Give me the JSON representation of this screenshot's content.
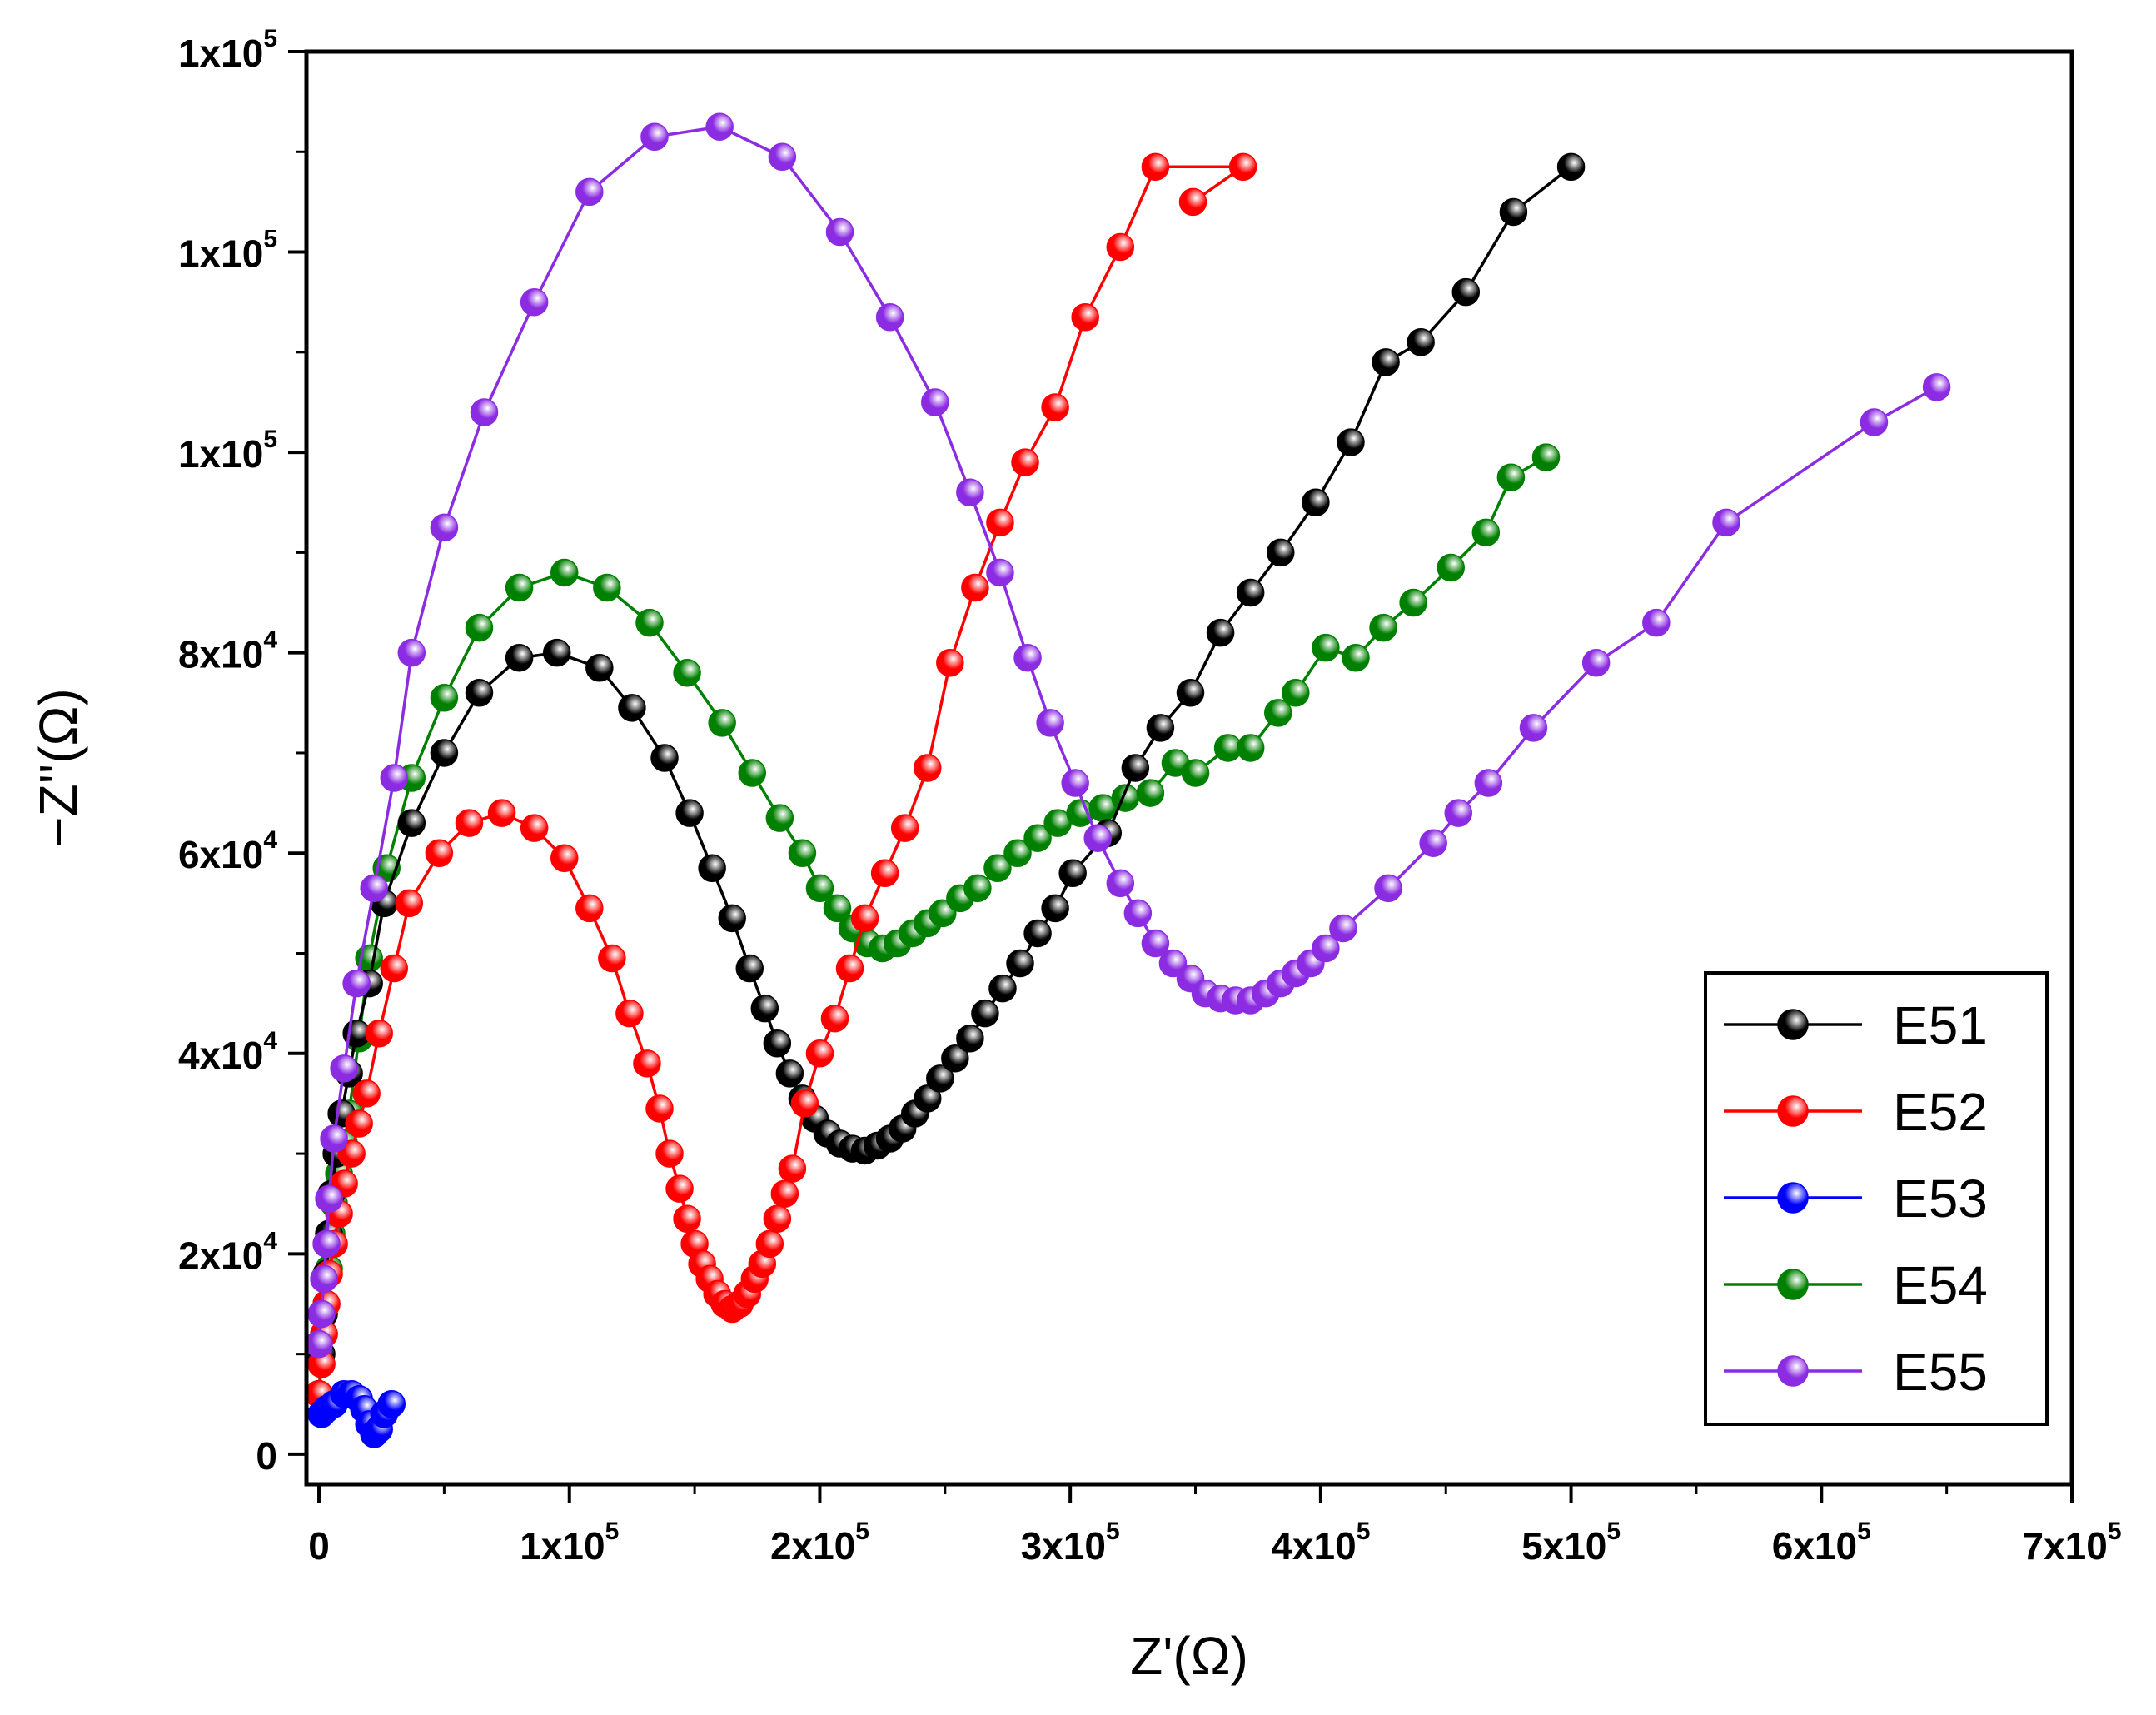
{
  "chart_data": {
    "type": "scatter",
    "title": "",
    "xlabel": "Z'(Ω)",
    "ylabel": "−Z''(Ω)",
    "xlim": [
      -5000,
      700000
    ],
    "ylim": [
      -3000,
      140000
    ],
    "x_ticks": [
      {
        "value": 0,
        "mantissa": "0",
        "exp": ""
      },
      {
        "value": 100000,
        "mantissa": "1x10",
        "exp": "5"
      },
      {
        "value": 200000,
        "mantissa": "2x10",
        "exp": "5"
      },
      {
        "value": 300000,
        "mantissa": "3x10",
        "exp": "5"
      },
      {
        "value": 400000,
        "mantissa": "4x10",
        "exp": "5"
      },
      {
        "value": 500000,
        "mantissa": "5x10",
        "exp": "5"
      },
      {
        "value": 600000,
        "mantissa": "6x10",
        "exp": "5"
      },
      {
        "value": 700000,
        "mantissa": "7x10",
        "exp": "5"
      }
    ],
    "y_ticks": [
      {
        "value": 0,
        "mantissa": "0",
        "exp": ""
      },
      {
        "value": 20000,
        "mantissa": "2x10",
        "exp": "4"
      },
      {
        "value": 40000,
        "mantissa": "4x10",
        "exp": "4"
      },
      {
        "value": 60000,
        "mantissa": "6x10",
        "exp": "4"
      },
      {
        "value": 80000,
        "mantissa": "8x10",
        "exp": "4"
      },
      {
        "value": 100000,
        "mantissa": "1x10",
        "exp": "5"
      },
      {
        "value": 120000,
        "mantissa": "1x10",
        "exp": "5"
      },
      {
        "value": 140000,
        "mantissa": "1x10",
        "exp": "5"
      }
    ],
    "legend_position": "bottom-right",
    "series": [
      {
        "name": "E51",
        "color": "#000000",
        "points": [
          [
            0,
            6000
          ],
          [
            1000,
            10000
          ],
          [
            2000,
            14000
          ],
          [
            3000,
            18000
          ],
          [
            4000,
            22000
          ],
          [
            5000,
            26000
          ],
          [
            7000,
            30000
          ],
          [
            9000,
            34000
          ],
          [
            12000,
            38000
          ],
          [
            15000,
            42000
          ],
          [
            20000,
            47000
          ],
          [
            26000,
            55000
          ],
          [
            37000,
            63000
          ],
          [
            50000,
            70000
          ],
          [
            64000,
            76000
          ],
          [
            80000,
            79500
          ],
          [
            95000,
            80000
          ],
          [
            112000,
            78500
          ],
          [
            125000,
            74500
          ],
          [
            138000,
            69500
          ],
          [
            148000,
            64000
          ],
          [
            157000,
            58500
          ],
          [
            165000,
            53500
          ],
          [
            172000,
            48500
          ],
          [
            178000,
            44500
          ],
          [
            183000,
            41000
          ],
          [
            188000,
            38000
          ],
          [
            193000,
            35500
          ],
          [
            198000,
            33500
          ],
          [
            203000,
            32000
          ],
          [
            208000,
            31000
          ],
          [
            213000,
            30500
          ],
          [
            218000,
            30300
          ],
          [
            223000,
            30800
          ],
          [
            228000,
            31500
          ],
          [
            233000,
            32500
          ],
          [
            238000,
            34000
          ],
          [
            243000,
            35500
          ],
          [
            248000,
            37500
          ],
          [
            254000,
            39500
          ],
          [
            260000,
            41500
          ],
          [
            266000,
            44000
          ],
          [
            273000,
            46500
          ],
          [
            280000,
            49000
          ],
          [
            287000,
            52000
          ],
          [
            294000,
            54500
          ],
          [
            301000,
            58000
          ],
          [
            315000,
            62000
          ],
          [
            326000,
            68500
          ],
          [
            336000,
            72500
          ],
          [
            348000,
            76000
          ],
          [
            360000,
            82000
          ],
          [
            372000,
            86000
          ],
          [
            384000,
            90000
          ],
          [
            398000,
            95000
          ],
          [
            412000,
            101000
          ],
          [
            426000,
            109000
          ],
          [
            440000,
            111000
          ],
          [
            458000,
            116000
          ],
          [
            477000,
            124000
          ],
          [
            500000,
            128500
          ]
        ]
      },
      {
        "name": "E52",
        "color": "#ff0000",
        "points": [
          [
            0,
            6000
          ],
          [
            1000,
            9000
          ],
          [
            2000,
            12000
          ],
          [
            3000,
            15000
          ],
          [
            4000,
            18000
          ],
          [
            6000,
            21000
          ],
          [
            8000,
            24000
          ],
          [
            10000,
            27000
          ],
          [
            13000,
            30000
          ],
          [
            16000,
            33000
          ],
          [
            19000,
            36000
          ],
          [
            24000,
            42000
          ],
          [
            30000,
            48500
          ],
          [
            36000,
            55000
          ],
          [
            48000,
            60000
          ],
          [
            60000,
            63000
          ],
          [
            73000,
            64000
          ],
          [
            86000,
            62500
          ],
          [
            98000,
            59500
          ],
          [
            108000,
            54500
          ],
          [
            117000,
            49500
          ],
          [
            124000,
            44000
          ],
          [
            131000,
            39000
          ],
          [
            136000,
            34500
          ],
          [
            140000,
            30000
          ],
          [
            144000,
            26500
          ],
          [
            147000,
            23500
          ],
          [
            150000,
            21000
          ],
          [
            153000,
            19000
          ],
          [
            156000,
            17500
          ],
          [
            159000,
            16000
          ],
          [
            162000,
            15000
          ],
          [
            165000,
            14500
          ],
          [
            168000,
            15000
          ],
          [
            171000,
            16000
          ],
          [
            174000,
            17500
          ],
          [
            177000,
            19000
          ],
          [
            180000,
            21000
          ],
          [
            183000,
            23500
          ],
          [
            186000,
            26000
          ],
          [
            189000,
            28500
          ],
          [
            194000,
            35000
          ],
          [
            200000,
            40000
          ],
          [
            206000,
            43500
          ],
          [
            212000,
            48500
          ],
          [
            218000,
            53500
          ],
          [
            226000,
            58000
          ],
          [
            234000,
            62500
          ],
          [
            243000,
            68500
          ],
          [
            252000,
            79000
          ],
          [
            262000,
            86500
          ],
          [
            272000,
            93000
          ],
          [
            282000,
            99000
          ],
          [
            294000,
            104500
          ],
          [
            306000,
            113500
          ],
          [
            320000,
            120500
          ],
          [
            334000,
            128500
          ],
          [
            369000,
            128500
          ],
          [
            349000,
            125000
          ]
        ]
      },
      {
        "name": "E53",
        "color": "#0000ff",
        "points": [
          [
            1000,
            4000
          ],
          [
            3000,
            4500
          ],
          [
            6000,
            5000
          ],
          [
            10000,
            6000
          ],
          [
            13000,
            6000
          ],
          [
            16000,
            5500
          ],
          [
            18000,
            4500
          ],
          [
            20000,
            3000
          ],
          [
            22000,
            2000
          ],
          [
            24000,
            2500
          ],
          [
            26000,
            4000
          ],
          [
            29000,
            5000
          ]
        ]
      },
      {
        "name": "E54",
        "color": "#008000",
        "points": [
          [
            0,
            6000
          ],
          [
            1000,
            9000
          ],
          [
            2000,
            12000
          ],
          [
            3000,
            15000
          ],
          [
            4000,
            18500
          ],
          [
            5000,
            22000
          ],
          [
            6000,
            25000
          ],
          [
            8000,
            28000
          ],
          [
            10000,
            31000
          ],
          [
            12000,
            34000
          ],
          [
            16000,
            41500
          ],
          [
            20000,
            49500
          ],
          [
            27000,
            58500
          ],
          [
            37000,
            67500
          ],
          [
            50000,
            75500
          ],
          [
            64000,
            82500
          ],
          [
            80000,
            86500
          ],
          [
            98000,
            88000
          ],
          [
            115000,
            86500
          ],
          [
            132000,
            83000
          ],
          [
            147000,
            78000
          ],
          [
            161000,
            73000
          ],
          [
            173000,
            68000
          ],
          [
            184000,
            63500
          ],
          [
            193000,
            60000
          ],
          [
            200000,
            56500
          ],
          [
            207000,
            54500
          ],
          [
            213000,
            52500
          ],
          [
            219000,
            51000
          ],
          [
            225000,
            50500
          ],
          [
            231000,
            51000
          ],
          [
            237000,
            52000
          ],
          [
            243000,
            53000
          ],
          [
            249000,
            54000
          ],
          [
            256000,
            55500
          ],
          [
            263000,
            56500
          ],
          [
            271000,
            58500
          ],
          [
            279000,
            60000
          ],
          [
            287000,
            61500
          ],
          [
            295000,
            63000
          ],
          [
            304000,
            64000
          ],
          [
            313000,
            64500
          ],
          [
            322000,
            65500
          ],
          [
            332000,
            66000
          ],
          [
            342000,
            69000
          ],
          [
            350000,
            68000
          ],
          [
            363000,
            70500
          ],
          [
            372000,
            70500
          ],
          [
            383000,
            74000
          ],
          [
            390000,
            76000
          ],
          [
            402000,
            80500
          ],
          [
            414000,
            79500
          ],
          [
            425000,
            82500
          ],
          [
            437000,
            85000
          ],
          [
            452000,
            88500
          ],
          [
            466000,
            92000
          ],
          [
            476000,
            97500
          ],
          [
            490000,
            99500
          ]
        ]
      },
      {
        "name": "E55",
        "color": "#8b2be2",
        "points": [
          [
            0,
            11000
          ],
          [
            1000,
            14000
          ],
          [
            2000,
            17500
          ],
          [
            3000,
            21000
          ],
          [
            4000,
            25500
          ],
          [
            6000,
            31500
          ],
          [
            10000,
            38500
          ],
          [
            15000,
            47000
          ],
          [
            22000,
            56500
          ],
          [
            30000,
            67500
          ],
          [
            37000,
            80000
          ],
          [
            50000,
            92500
          ],
          [
            66000,
            104000
          ],
          [
            86000,
            115000
          ],
          [
            108000,
            126000
          ],
          [
            134000,
            131500
          ],
          [
            160000,
            132500
          ],
          [
            185000,
            129500
          ],
          [
            208000,
            122000
          ],
          [
            228000,
            113500
          ],
          [
            246000,
            105000
          ],
          [
            260000,
            96000
          ],
          [
            272000,
            88000
          ],
          [
            283000,
            79500
          ],
          [
            292000,
            73000
          ],
          [
            302000,
            67000
          ],
          [
            311000,
            61500
          ],
          [
            320000,
            57000
          ],
          [
            327000,
            54000
          ],
          [
            334000,
            51000
          ],
          [
            341000,
            49000
          ],
          [
            348000,
            47500
          ],
          [
            354000,
            46000
          ],
          [
            360000,
            45500
          ],
          [
            366000,
            45300
          ],
          [
            372000,
            45300
          ],
          [
            378000,
            46000
          ],
          [
            384000,
            47000
          ],
          [
            390000,
            48000
          ],
          [
            396000,
            49000
          ],
          [
            402000,
            50500
          ],
          [
            409000,
            52500
          ],
          [
            427000,
            56500
          ],
          [
            445000,
            61000
          ],
          [
            455000,
            64000
          ],
          [
            467000,
            67000
          ],
          [
            485000,
            72500
          ],
          [
            510000,
            79000
          ],
          [
            534000,
            83000
          ],
          [
            562000,
            93000
          ],
          [
            621000,
            103000
          ],
          [
            646000,
            106500
          ]
        ]
      }
    ]
  }
}
